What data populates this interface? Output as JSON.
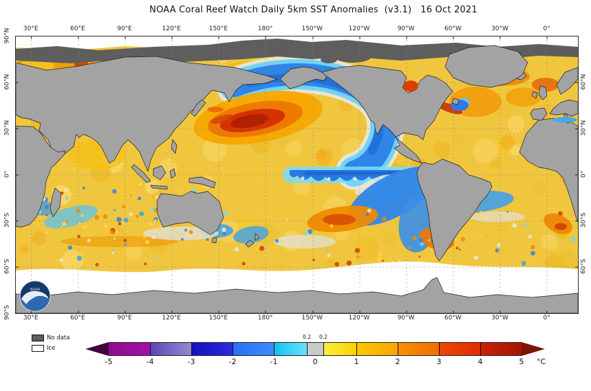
{
  "title": "NOAA Coral Reef Watch Daily 5km SST Anomalies  (v3.1)   16 Oct 2021",
  "map": {
    "lon_ticks": [
      "30°E",
      "60°E",
      "90°E",
      "120°E",
      "150°E",
      "180°",
      "150°W",
      "120°W",
      "90°W",
      "60°W",
      "30°W",
      "0°"
    ],
    "lat_ticks_left": [
      "90°N",
      "60°N",
      "30°N",
      "0°",
      "30°S",
      "60°S",
      "90°S"
    ],
    "lat_ticks_right": [
      "60°N",
      "30°N",
      "0°",
      "30°S",
      "60°S"
    ],
    "logo_text": "NOAA"
  },
  "legend": {
    "items": [
      {
        "label": "No data",
        "color": "#5e5e5e"
      },
      {
        "label": "Ice",
        "color": "#ffffff"
      }
    ]
  },
  "colorbar": {
    "unit": "°C",
    "tick_labels": [
      "-5",
      "-4",
      "-3",
      "-2",
      "-1",
      "0",
      "1",
      "2",
      "3",
      "4",
      "5"
    ],
    "top_labels": [
      {
        "value": -0.2,
        "label": "0.2"
      },
      {
        "value": 0.2,
        "label": "0.2"
      }
    ],
    "segments": [
      {
        "from": -5,
        "to": -4,
        "c1": "#8e0c8e",
        "c2": "#a312a3"
      },
      {
        "from": -4,
        "to": -3,
        "c1": "#5f45b8",
        "c2": "#9488d2"
      },
      {
        "from": -3,
        "to": -2,
        "c1": "#1512c0",
        "c2": "#2b2ae0"
      },
      {
        "from": -2,
        "to": -1,
        "c1": "#2e6ef5",
        "c2": "#3a8cff"
      },
      {
        "from": -1,
        "to": -0.2,
        "c1": "#15c1f2",
        "c2": "#66e4ff"
      },
      {
        "from": -0.2,
        "to": 0.2,
        "c1": "#c9c9c9",
        "c2": "#c9c9c9"
      },
      {
        "from": 0.2,
        "to": 1,
        "c1": "#f7f13c",
        "c2": "#ffd000"
      },
      {
        "from": 1,
        "to": 2,
        "c1": "#ffc800",
        "c2": "#f7a600"
      },
      {
        "from": 2,
        "to": 3,
        "c1": "#fa9200",
        "c2": "#f26d00"
      },
      {
        "from": 3,
        "to": 4,
        "c1": "#ee4400",
        "c2": "#e12d00"
      },
      {
        "from": 4,
        "to": 5,
        "c1": "#cb2300",
        "c2": "#a51500"
      }
    ]
  },
  "colors": {
    "land": "#a3a3a3",
    "nodata": "#5e5e5e",
    "ice": "#ffffff",
    "frame": "#2b2b2b",
    "grid": "#8a8a8a",
    "coast": "#1f1f1f",
    "ocean_base": "#f0c63e",
    "title_text": "#111111",
    "tick_text": "#222222",
    "cb_left_arrow": "#420040",
    "cb_right_arrow": "#7a1500"
  }
}
